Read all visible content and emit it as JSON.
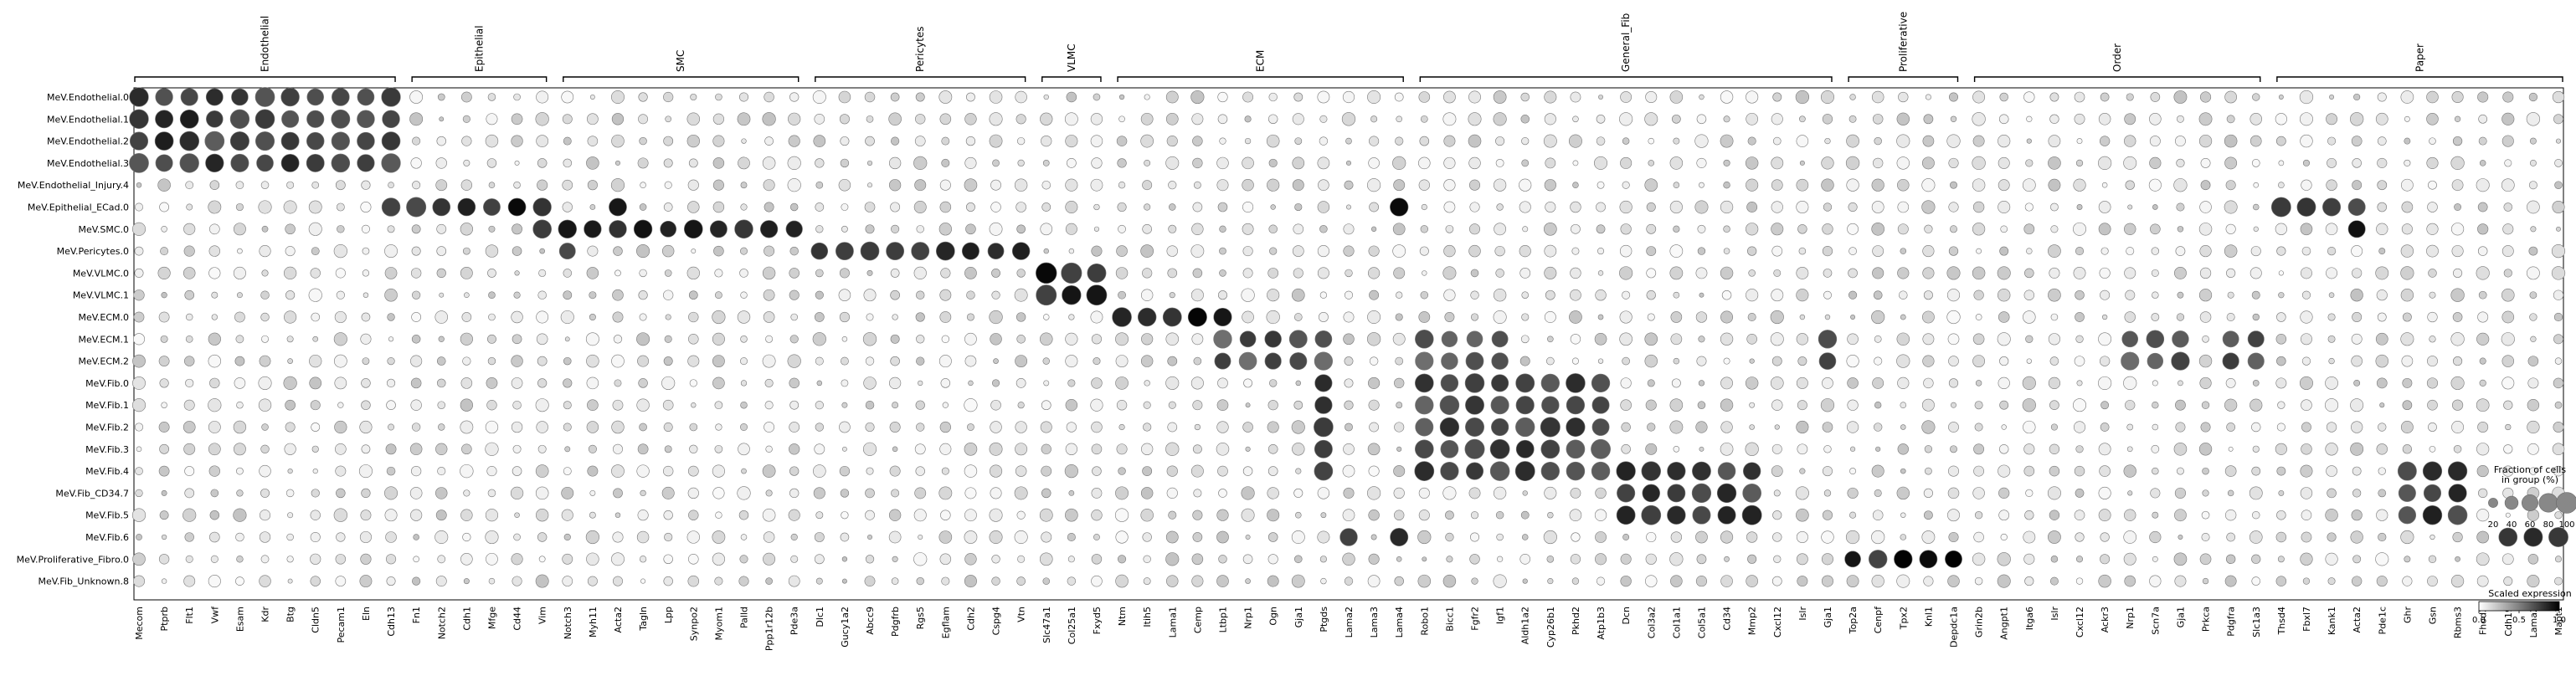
{
  "chart_data": {
    "type": "dotplot",
    "title": "",
    "gene_groups": [
      {
        "name": "Endothelial",
        "genes": [
          "Mecom",
          "Ptprb",
          "Flt1",
          "Vwf",
          "Esam",
          "Kdr",
          "Btg",
          "Cldn5",
          "Pecam1",
          "Eln",
          "Cdh13"
        ]
      },
      {
        "name": "Epithelial",
        "genes": [
          "Fn1",
          "Notch2",
          "Cdh1",
          "Mfge",
          "Cd44",
          "Vim"
        ]
      },
      {
        "name": "SMC",
        "genes": [
          "Notch3",
          "Myh11",
          "Acta2",
          "Tagln",
          "Lpp",
          "Synpo2",
          "Myom1",
          "Palld",
          "Ppp1r12b",
          "Pde3a"
        ]
      },
      {
        "name": "Pericytes",
        "genes": [
          "Dlc1",
          "Gucy1a2",
          "Abcc9",
          "Pdgfrb",
          "Rgs5",
          "Egflam",
          "Cdh2",
          "Cspg4",
          "Vtn"
        ]
      },
      {
        "name": "VLMC",
        "genes": [
          "Slc47a1",
          "Col25a1",
          "Fxyd5"
        ]
      },
      {
        "name": "ECM",
        "genes": [
          "Ntm",
          "Itih5",
          "Lama1",
          "Cemp",
          "Ltbp1",
          "Nrp1",
          "Ogn",
          "Gja1",
          "Ptgds",
          "Lama2",
          "Lama3",
          "Lama4"
        ]
      },
      {
        "name": "General_Fib",
        "genes": [
          "Robo1",
          "Bicc1",
          "Fgfr2",
          "Igf1",
          "Aldh1a2",
          "Cyp26b1",
          "Pkhd2",
          "Atp1b3",
          "Dcn",
          "Col3a2",
          "Col1a1",
          "Col5a1",
          "Cd34",
          "Mmp2",
          "Cxcl12",
          "Islr",
          "Gja1"
        ]
      },
      {
        "name": "Proliferative",
        "genes": [
          "Top2a",
          "Cenpf",
          "Tpx2",
          "Knl1",
          "Depdc1a"
        ]
      },
      {
        "name": "Order",
        "genes": [
          "Grin2b",
          "Angpt1",
          "Itga6",
          "Islr",
          "Cxcl12",
          "Ackr3",
          "Nrp1",
          "Scn7a",
          "Gja1",
          "Prkca",
          "Pdgfra",
          "Slc1a3"
        ]
      },
      {
        "name": "Paper",
        "genes": [
          "Thsd4",
          "Fbxl7",
          "Kank1",
          "Acta2",
          "Pde1c",
          "Ghr",
          "Gsn",
          "Rbms3",
          "Fhod3",
          "Cdh19",
          "Lama2",
          "Mapt1"
        ]
      }
    ],
    "groups": [
      "MeV.Endothelial.0",
      "MeV.Endothelial.1",
      "MeV.Endothelial.2",
      "MeV.Endothelial.3",
      "MeV.Endothelial_Injury.4",
      "MeV.Epithelial_ECad.0",
      "MeV.SMC.0",
      "MeV.Pericytes.0",
      "MeV.VLMC.0",
      "MeV.VLMC.1",
      "MeV.ECM.0",
      "MeV.ECM.1",
      "MeV.ECM.2",
      "MeV.Fib.0",
      "MeV.Fib.1",
      "MeV.Fib.2",
      "MeV.Fib.3",
      "MeV.Fib.4",
      "MeV.Fib_CD34.7",
      "MeV.Fib.5",
      "MeV.Fib.6",
      "MeV.Proliferative_Fibro.0",
      "MeV.Fib_Unknown.8"
    ],
    "highlights": [
      {
        "rows": [
          0,
          1,
          2,
          3
        ],
        "genes": [
          "Mecom",
          "Ptprb",
          "Flt1",
          "Vwf",
          "Esam",
          "Kdr",
          "Btg",
          "Cldn5",
          "Pecam1",
          "Eln",
          "Cdh13"
        ],
        "frac": 78,
        "expr": 0.85
      },
      {
        "rows": [
          5
        ],
        "genes": [
          "Cdh13",
          "Fn1",
          "Notch2",
          "Cdh1",
          "Mfge",
          "Cd44",
          "Vim",
          "Lama4",
          "Thsd4",
          "Fbxl7",
          "Kank1",
          "Acta2"
        ],
        "frac": 80,
        "expr": 0.92
      },
      {
        "rows": [
          6
        ],
        "genes": [
          "Vim",
          "Notch3",
          "Myh11",
          "Acta2",
          "Tagln",
          "Lpp",
          "Synpo2",
          "Myom1",
          "Palld",
          "Ppp1r12b",
          "Pde3a"
        ],
        "frac": 72,
        "expr": 0.9
      },
      {
        "rows": [
          7
        ],
        "genes": [
          "Notch3",
          "Dlc1",
          "Gucy1a2",
          "Abcc9",
          "Pdgfrb",
          "Rgs5",
          "Egflam",
          "Cdh2",
          "Cspg4",
          "Vtn"
        ],
        "frac": 72,
        "expr": 0.9
      },
      {
        "rows": [
          8,
          9
        ],
        "genes": [
          "Slc47a1",
          "Col25a1",
          "Fxyd5"
        ],
        "frac": 90,
        "expr": 0.95
      },
      {
        "rows": [
          10
        ],
        "genes": [
          "Ntm",
          "Itih5",
          "Lama1",
          "Cemp",
          "Ltbp1"
        ],
        "frac": 85,
        "expr": 0.95
      },
      {
        "rows": [
          11,
          12
        ],
        "genes": [
          "Ltbp1",
          "Nrp1",
          "Ogn",
          "Gja1",
          "Ptgds",
          "Robo1",
          "Bicc1",
          "Fgfr2",
          "Igf1",
          "Nrp1",
          "Scn7a",
          "Pdgfra",
          "Slc1a3"
        ],
        "frac": 70,
        "expr": 0.75
      },
      {
        "rows": [
          13,
          14,
          15,
          16,
          17
        ],
        "genes": [
          "Robo1",
          "Bicc1",
          "Fgfr2",
          "Igf1",
          "Aldh1a2",
          "Cyp26b1",
          "Pkhd2",
          "Atp1b3",
          "Ptgds"
        ],
        "frac": 80,
        "expr": 0.8
      },
      {
        "rows": [
          17,
          18,
          19
        ],
        "genes": [
          "Dcn",
          "Col3a2",
          "Col1a1",
          "Col5a1",
          "Cd34",
          "Mmp2",
          "Ghr",
          "Gsn",
          "Rbms3"
        ],
        "frac": 80,
        "expr": 0.85
      },
      {
        "rows": [
          20
        ],
        "genes": [
          "Cdh19",
          "Lama2",
          "Mapt1",
          "Lama4"
        ],
        "frac": 85,
        "expr": 0.92
      },
      {
        "rows": [
          21
        ],
        "genes": [
          "Top2a",
          "Cenpf",
          "Tpx2",
          "Knl1",
          "Depdc1a"
        ],
        "frac": 70,
        "expr": 0.98
      }
    ],
    "background": {
      "frac": 22,
      "expr": 0.12
    },
    "legend_size": {
      "title": "Fraction of cells\nin group (%)",
      "ticks": [
        20,
        40,
        60,
        80,
        100
      ]
    },
    "legend_color": {
      "title": "Scaled expression",
      "ticks": [
        "0.0",
        "0.5",
        "1.0"
      ],
      "min": 0.0,
      "max": 1.0,
      "low_color": "#ffffff",
      "high_color": "#000000"
    }
  }
}
